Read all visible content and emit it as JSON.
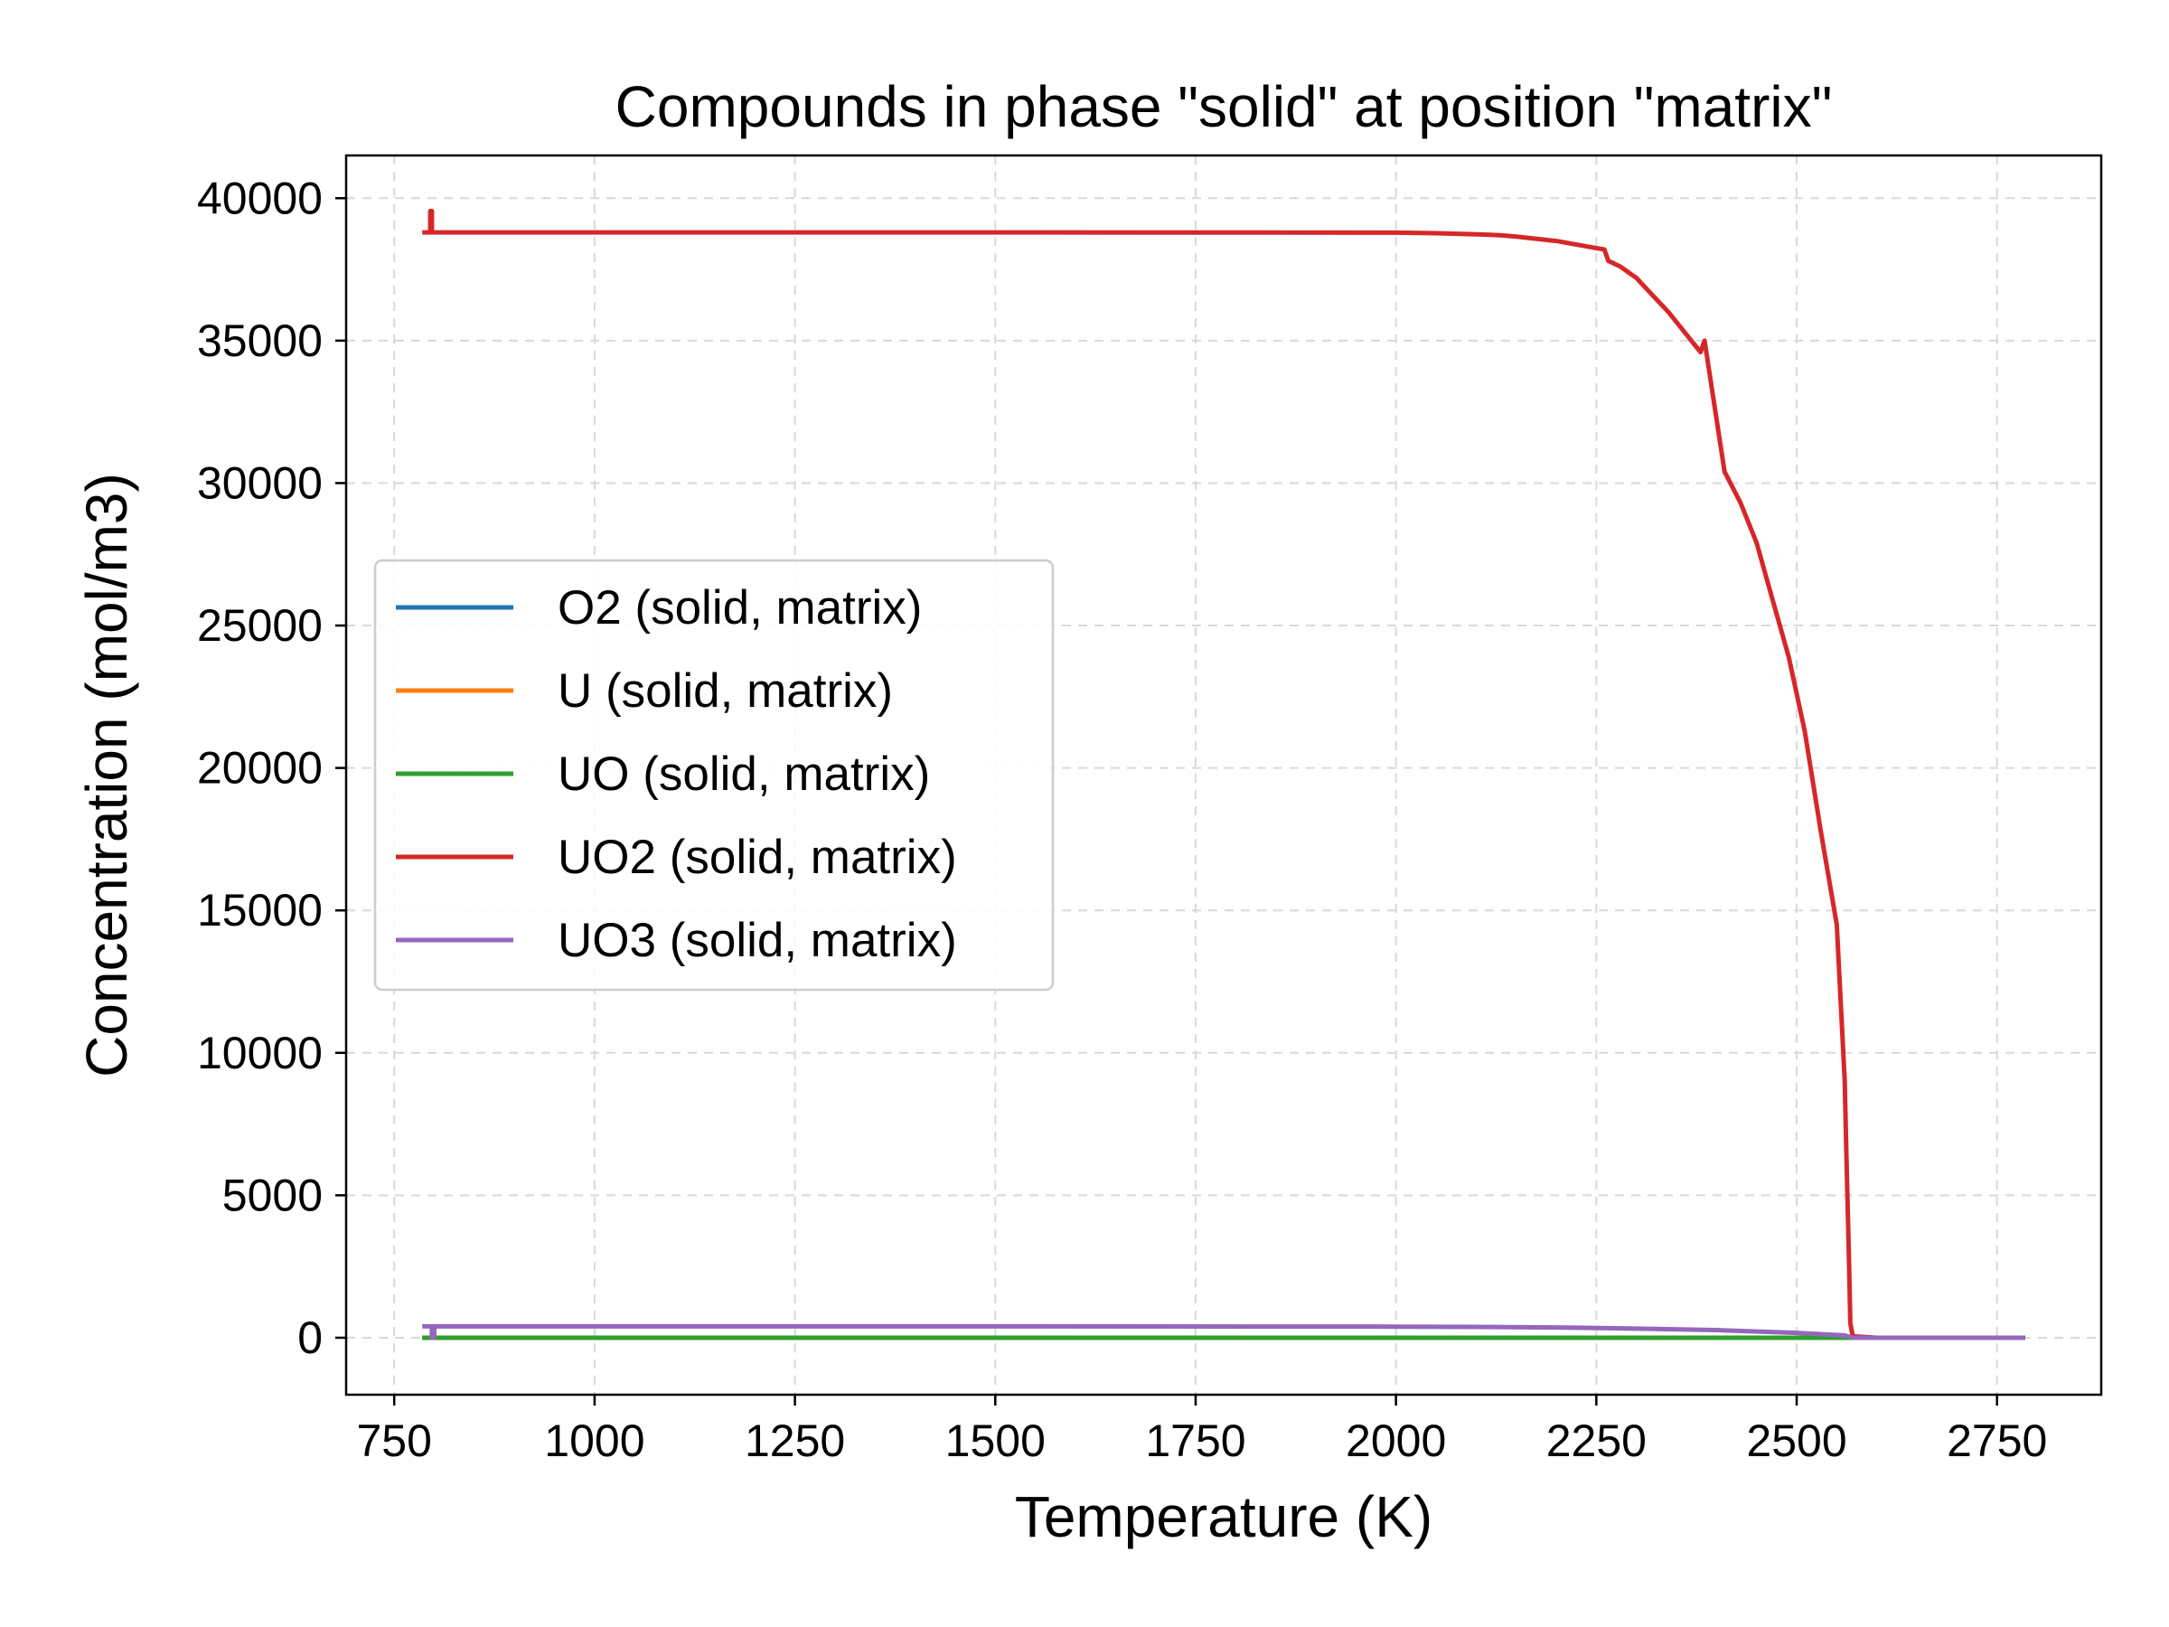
{
  "chart_data": {
    "type": "line",
    "title": "Compounds in phase \"solid\" at position \"matrix\"",
    "xlabel": "Temperature (K)",
    "ylabel": "Concentration (mol/m3)",
    "xlim": [
      690,
      2880
    ],
    "ylim": [
      -2000,
      41500
    ],
    "xticks": [
      750,
      1000,
      1250,
      1500,
      1750,
      2000,
      2250,
      2500,
      2750
    ],
    "yticks": [
      0,
      5000,
      10000,
      15000,
      20000,
      25000,
      30000,
      35000,
      40000
    ],
    "grid": true,
    "legend_position": "center-left",
    "series": [
      {
        "name": "O2 (solid, matrix)",
        "color": "#1f77b4",
        "x": [
          785,
          1000,
          1500,
          2000,
          2500,
          2570,
          2785
        ],
        "y": [
          0,
          0,
          0,
          0,
          0,
          0,
          0
        ]
      },
      {
        "name": "U (solid, matrix)",
        "color": "#ff7f0e",
        "x": [
          785,
          1000,
          1500,
          2000,
          2500,
          2570,
          2785
        ],
        "y": [
          0,
          0,
          0,
          0,
          0,
          0,
          0
        ]
      },
      {
        "name": "UO (solid, matrix)",
        "color": "#2ca02c",
        "x": [
          785,
          1000,
          1500,
          2000,
          2500,
          2570,
          2785
        ],
        "y": [
          0,
          0,
          0,
          0,
          0,
          0,
          0
        ]
      },
      {
        "name": "UO2 (solid, matrix)",
        "color": "#d62728",
        "x": [
          785,
          795,
          795,
          797,
          797,
          1000,
          1500,
          2000,
          2050,
          2100,
          2130,
          2150,
          2200,
          2240,
          2260,
          2265,
          2280,
          2300,
          2320,
          2340,
          2360,
          2380,
          2385,
          2410,
          2430,
          2450,
          2470,
          2490,
          2510,
          2530,
          2550,
          2560,
          2562,
          2565,
          2567,
          2570,
          2600,
          2785
        ],
        "y": [
          38800,
          38800,
          39550,
          39550,
          38800,
          38800,
          38800,
          38790,
          38770,
          38730,
          38700,
          38650,
          38500,
          38300,
          38200,
          37800,
          37600,
          37200,
          36600,
          36000,
          35300,
          34600,
          35000,
          30400,
          29300,
          27900,
          25900,
          23900,
          21300,
          17800,
          14500,
          9000,
          6500,
          3000,
          500,
          50,
          0,
          0
        ]
      },
      {
        "name": "UO3 (solid, matrix)",
        "color": "#9467bd",
        "x": [
          785,
          797,
          797,
          800,
          800,
          1000,
          1500,
          2000,
          2100,
          2200,
          2300,
          2400,
          2500,
          2560,
          2570,
          2600,
          2785
        ],
        "y": [
          400,
          400,
          0,
          0,
          400,
          400,
          400,
          390,
          380,
          360,
          320,
          270,
          170,
          80,
          0,
          0,
          0
        ]
      }
    ]
  }
}
